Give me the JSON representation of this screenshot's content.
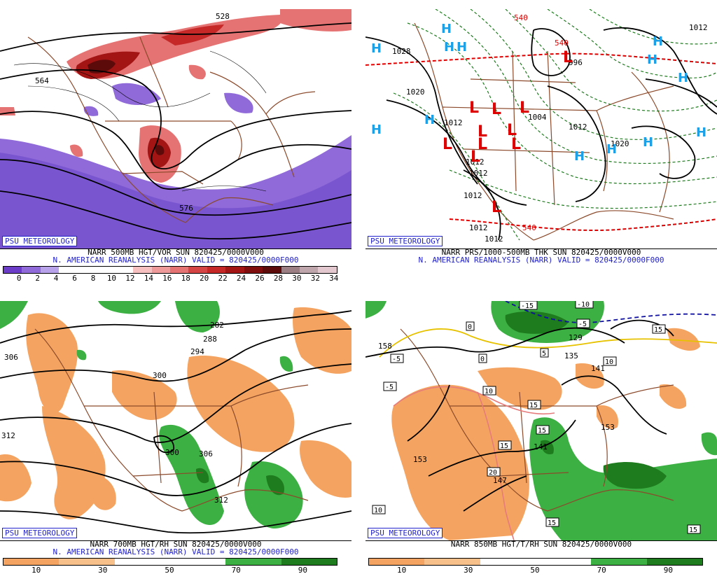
{
  "branding": "PSU METEOROLOGY",
  "panels": [
    {
      "title": "NARR 500MB HGT/VOR SUN 820425/0000V000",
      "subtitle": "N. AMERICAN REANALYSIS (NARR) VALID = 820425/0000F000",
      "field": "500mb height / vorticity",
      "contour_labels": [
        "528",
        "564",
        "576"
      ],
      "colorbar": {
        "ticks": [
          "0",
          "2",
          "4",
          "6",
          "8",
          "10",
          "12",
          "14",
          "16",
          "18",
          "20",
          "22",
          "24",
          "26",
          "28",
          "30",
          "32",
          "34"
        ],
        "colors": [
          "#6a3cc8",
          "#8f6ad8",
          "#b8a2ea",
          "#ffffff",
          "#ffffff",
          "#ffffff",
          "#ffffff",
          "#f7c0c0",
          "#ef9a9a",
          "#e57373",
          "#d64545",
          "#c62828",
          "#a31515",
          "#7f0d0d",
          "#5c0a0a",
          "#9b7f85",
          "#bfa6ac",
          "#e4c8cf"
        ]
      }
    },
    {
      "title": "NARR PRS/1000-500MB THK SUN 820425/0000V000",
      "subtitle": "N. AMERICAN REANALYSIS (NARR) VALID = 820425/0000F000",
      "field": "sea level pressure / 1000-500mb thickness",
      "contour_labels": [
        "1028",
        "1020",
        "1012",
        "1012",
        "1012",
        "1004",
        "996",
        "1012",
        "1012",
        "1012",
        "1012",
        "1020",
        "1012",
        "540",
        "540",
        "540"
      ],
      "highs": [
        "H",
        "H",
        "H",
        "H",
        "H",
        "H",
        "H",
        "H",
        "H",
        "H",
        "H",
        "H",
        "H"
      ],
      "lows": [
        "L",
        "L",
        "L",
        "L",
        "L",
        "L",
        "L",
        "L",
        "L",
        "L",
        "L"
      ]
    },
    {
      "title": "NARR 700MB HGT/RH SUN 820425/0000V000",
      "subtitle": "N. AMERICAN REANALYSIS (NARR) VALID = 820425/0000F000",
      "field": "700mb height / relative humidity",
      "contour_labels": [
        "306",
        "300",
        "294",
        "288",
        "282",
        "312",
        "300",
        "306",
        "312"
      ],
      "colorbar": {
        "ticks": [
          "10",
          "30",
          "50",
          "70",
          "90"
        ],
        "colors": [
          "#f4a460",
          "#f7bf8a",
          "#ffffff",
          "#ffffff",
          "#3cb043",
          "#1e7b1e"
        ]
      }
    },
    {
      "title": "NARR 850MB HGT/T/RH SUN 820425/0000V000",
      "subtitle": "",
      "field": "850mb height / temperature / relative humidity",
      "contour_labels": [
        "158",
        "153",
        "147",
        "153",
        "135",
        "129",
        "141",
        "141"
      ],
      "temp_labels": [
        "-15",
        "-10",
        "-5",
        "-5",
        "0",
        "5",
        "0",
        "10",
        "15",
        "10",
        "15",
        "15",
        "-5",
        "20",
        "10",
        "15",
        "15",
        "15"
      ],
      "colorbar": {
        "ticks": [
          "10",
          "30",
          "50",
          "70",
          "90"
        ],
        "colors": [
          "#f4a460",
          "#f7bf8a",
          "#ffffff",
          "#ffffff",
          "#3cb043",
          "#1e7b1e"
        ]
      }
    }
  ]
}
